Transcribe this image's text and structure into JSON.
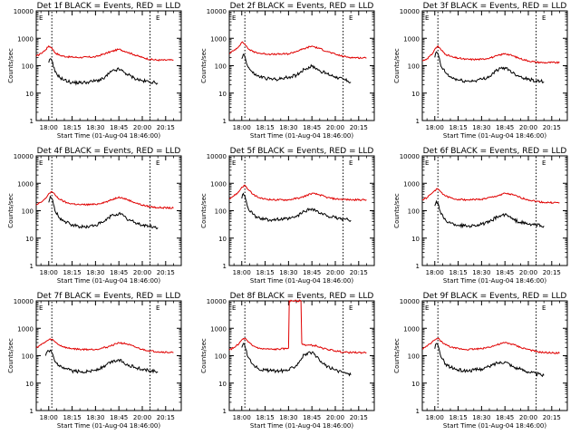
{
  "colors": {
    "events": "#000000",
    "lld": "#e00000",
    "axes": "#000000"
  },
  "panels": [
    {
      "title": "Det 1f BLACK = Events, RED = LLD",
      "marker_left": "E",
      "marker_right": "E"
    },
    {
      "title": "Det 2f BLACK = Events, RED = LLD",
      "marker_left": "E",
      "marker_right": "E"
    },
    {
      "title": "Det 3f BLACK = Events, RED = LLD",
      "marker_left": "E",
      "marker_right": "E"
    },
    {
      "title": "Det 4f BLACK = Events, RED = LLD",
      "marker_left": "E",
      "marker_right": "E"
    },
    {
      "title": "Det 5f BLACK = Events, RED = LLD",
      "marker_left": "E",
      "marker_right": "E"
    },
    {
      "title": "Det 6f BLACK = Events, RED = LLD",
      "marker_left": "E",
      "marker_right": "E"
    },
    {
      "title": "Det 7f BLACK = Events, RED = LLD",
      "marker_left": "E",
      "marker_right": "E"
    },
    {
      "title": "Det 8f BLACK = Events, RED = LLD",
      "marker_left": "E",
      "marker_right": "E"
    },
    {
      "title": "Det 9f BLACK = Events, RED = LLD",
      "marker_left": "E",
      "marker_right": "E"
    }
  ],
  "chart_data": {
    "type": "line",
    "layout": "3x3 small multiples",
    "xlabel": "Start Time (01-Aug-04 18:46:00)",
    "ylabel": "Counts/sec",
    "y_scale": "log",
    "ylim": [
      1,
      10000
    ],
    "y_tick_labels": [
      "1",
      "10",
      "100",
      "1000",
      "10000"
    ],
    "x_tick_labels": [
      "18:00",
      "18:15",
      "18:30",
      "18:45",
      "20:00",
      "20:15"
    ],
    "x_tick_positions": [
      0,
      15,
      30,
      45,
      60,
      75
    ],
    "xlim": [
      -8,
      85
    ],
    "dotted_markers_x": [
      2,
      65
    ],
    "series_names": [
      "Events",
      "LLD"
    ],
    "panels": [
      {
        "detector": "1f",
        "events": {
          "x": [
            0,
            1,
            2,
            4,
            7,
            10,
            15,
            20,
            25,
            30,
            35,
            40,
            45,
            48,
            50,
            55,
            60,
            65,
            68,
            70
          ],
          "y": [
            130,
            180,
            150,
            60,
            38,
            30,
            24,
            24,
            25,
            28,
            33,
            60,
            75,
            60,
            50,
            35,
            28,
            26,
            24,
            23
          ]
        },
        "lld": {
          "x": [
            -8,
            -5,
            -2,
            0,
            2,
            4,
            7,
            12,
            20,
            30,
            38,
            45,
            50,
            55,
            60,
            65,
            70,
            80
          ],
          "y": [
            220,
            280,
            380,
            520,
            450,
            300,
            240,
            210,
            200,
            210,
            300,
            400,
            320,
            250,
            200,
            170,
            160,
            160
          ]
        }
      },
      {
        "detector": "2f",
        "events": {
          "x": [
            0,
            1,
            2,
            4,
            7,
            10,
            15,
            20,
            25,
            30,
            35,
            40,
            45,
            48,
            50,
            55,
            60,
            65,
            68,
            70
          ],
          "y": [
            180,
            260,
            220,
            90,
            55,
            42,
            35,
            32,
            33,
            38,
            45,
            75,
            95,
            80,
            65,
            50,
            40,
            32,
            28,
            25
          ]
        },
        "lld": {
          "x": [
            -8,
            -5,
            -2,
            0,
            2,
            4,
            7,
            12,
            20,
            30,
            38,
            45,
            50,
            55,
            60,
            65,
            70,
            80
          ],
          "y": [
            280,
            360,
            500,
            720,
            620,
            420,
            330,
            280,
            260,
            270,
            380,
            520,
            420,
            330,
            260,
            220,
            200,
            190
          ]
        }
      },
      {
        "detector": "3f",
        "events": {
          "x": [
            0,
            1,
            2,
            4,
            7,
            10,
            15,
            20,
            25,
            30,
            35,
            40,
            45,
            48,
            50,
            55,
            60,
            65,
            68,
            70
          ],
          "y": [
            200,
            320,
            280,
            95,
            55,
            38,
            30,
            27,
            28,
            32,
            40,
            70,
            85,
            70,
            55,
            40,
            32,
            28,
            27,
            26
          ]
        },
        "lld": {
          "x": [
            -8,
            -5,
            -2,
            0,
            2,
            4,
            7,
            12,
            20,
            30,
            38,
            45,
            50,
            55,
            60,
            65,
            70,
            80
          ],
          "y": [
            150,
            180,
            250,
            400,
            520,
            380,
            260,
            200,
            170,
            170,
            210,
            280,
            230,
            180,
            150,
            135,
            130,
            130
          ]
        }
      },
      {
        "detector": "4f",
        "events": {
          "x": [
            0,
            1,
            2,
            4,
            7,
            10,
            15,
            20,
            25,
            30,
            35,
            40,
            45,
            48,
            50,
            55,
            60,
            65,
            68,
            70
          ],
          "y": [
            200,
            330,
            280,
            100,
            55,
            40,
            30,
            26,
            26,
            30,
            38,
            65,
            80,
            65,
            50,
            38,
            30,
            27,
            25,
            24
          ]
        },
        "lld": {
          "x": [
            -8,
            -5,
            -2,
            0,
            2,
            4,
            7,
            12,
            20,
            30,
            38,
            45,
            50,
            55,
            60,
            65,
            70,
            80
          ],
          "y": [
            160,
            200,
            280,
            420,
            500,
            380,
            260,
            190,
            165,
            170,
            220,
            320,
            260,
            200,
            160,
            140,
            130,
            125
          ]
        }
      },
      {
        "detector": "5f",
        "events": {
          "x": [
            0,
            1,
            2,
            4,
            7,
            10,
            15,
            20,
            25,
            30,
            35,
            40,
            45,
            48,
            50,
            55,
            60,
            65,
            68,
            70
          ],
          "y": [
            280,
            420,
            350,
            130,
            75,
            55,
            48,
            47,
            48,
            50,
            60,
            95,
            120,
            100,
            80,
            65,
            55,
            50,
            47,
            45
          ]
        },
        "lld": {
          "x": [
            -8,
            -5,
            -2,
            0,
            2,
            4,
            7,
            12,
            20,
            30,
            38,
            45,
            50,
            55,
            60,
            65,
            70,
            80
          ],
          "y": [
            280,
            350,
            480,
            720,
            850,
            600,
            400,
            280,
            250,
            250,
            300,
            430,
            380,
            300,
            270,
            260,
            250,
            250
          ]
        }
      },
      {
        "detector": "6f",
        "events": {
          "x": [
            0,
            1,
            2,
            4,
            7,
            10,
            15,
            20,
            25,
            30,
            35,
            40,
            45,
            48,
            50,
            55,
            60,
            65,
            68,
            70
          ],
          "y": [
            150,
            220,
            190,
            75,
            45,
            35,
            30,
            28,
            29,
            32,
            38,
            60,
            72,
            60,
            48,
            38,
            32,
            30,
            29,
            28
          ]
        },
        "lld": {
          "x": [
            -8,
            -5,
            -2,
            0,
            2,
            4,
            7,
            12,
            20,
            30,
            38,
            45,
            50,
            55,
            60,
            65,
            70,
            80
          ],
          "y": [
            250,
            300,
            420,
            550,
            620,
            480,
            340,
            270,
            250,
            260,
            320,
            430,
            380,
            300,
            250,
            220,
            200,
            195
          ]
        }
      },
      {
        "detector": "7f",
        "events": {
          "x": [
            -2,
            0,
            1,
            2,
            4,
            7,
            10,
            15,
            20,
            25,
            30,
            35,
            40,
            45,
            48,
            50,
            55,
            60,
            65,
            68,
            70
          ],
          "y": [
            100,
            150,
            160,
            130,
            60,
            40,
            33,
            28,
            26,
            27,
            30,
            38,
            60,
            70,
            60,
            48,
            38,
            32,
            28,
            27,
            26
          ]
        },
        "lld": {
          "x": [
            -8,
            -5,
            -2,
            0,
            2,
            4,
            7,
            12,
            20,
            30,
            38,
            45,
            50,
            55,
            60,
            65,
            70,
            80
          ],
          "y": [
            200,
            250,
            320,
            380,
            400,
            320,
            240,
            190,
            170,
            170,
            210,
            300,
            270,
            210,
            170,
            150,
            140,
            130
          ]
        }
      },
      {
        "detector": "8f",
        "events": {
          "x": [
            0,
            1,
            2,
            4,
            7,
            10,
            15,
            20,
            25,
            30,
            35,
            40,
            45,
            48,
            50,
            55,
            60,
            65,
            68,
            70
          ],
          "y": [
            200,
            280,
            230,
            90,
            50,
            35,
            30,
            28,
            28,
            30,
            45,
            110,
            130,
            90,
            65,
            40,
            30,
            25,
            22,
            20
          ]
        },
        "lld": {
          "x": [
            -8,
            -5,
            -2,
            0,
            2,
            4,
            7,
            12,
            20,
            28,
            30,
            30.5,
            38,
            38.5,
            40,
            48,
            50,
            55,
            60,
            65,
            70,
            80
          ],
          "y": [
            160,
            200,
            260,
            380,
            430,
            320,
            230,
            180,
            170,
            180,
            190,
            10000,
            10000,
            280,
            250,
            230,
            200,
            170,
            150,
            135,
            130,
            130
          ]
        }
      },
      {
        "detector": "9f",
        "events": {
          "x": [
            0,
            1,
            2,
            4,
            7,
            10,
            15,
            20,
            25,
            30,
            35,
            40,
            45,
            48,
            50,
            55,
            60,
            65,
            68,
            70
          ],
          "y": [
            180,
            280,
            240,
            90,
            50,
            38,
            30,
            28,
            30,
            33,
            40,
            55,
            60,
            50,
            40,
            32,
            26,
            22,
            20,
            19
          ]
        },
        "lld": {
          "x": [
            -8,
            -5,
            -2,
            0,
            2,
            4,
            7,
            12,
            20,
            30,
            38,
            45,
            50,
            55,
            60,
            65,
            70,
            80
          ],
          "y": [
            180,
            220,
            300,
            380,
            430,
            340,
            250,
            190,
            170,
            180,
            230,
            300,
            260,
            200,
            170,
            140,
            130,
            125
          ]
        }
      }
    ]
  }
}
